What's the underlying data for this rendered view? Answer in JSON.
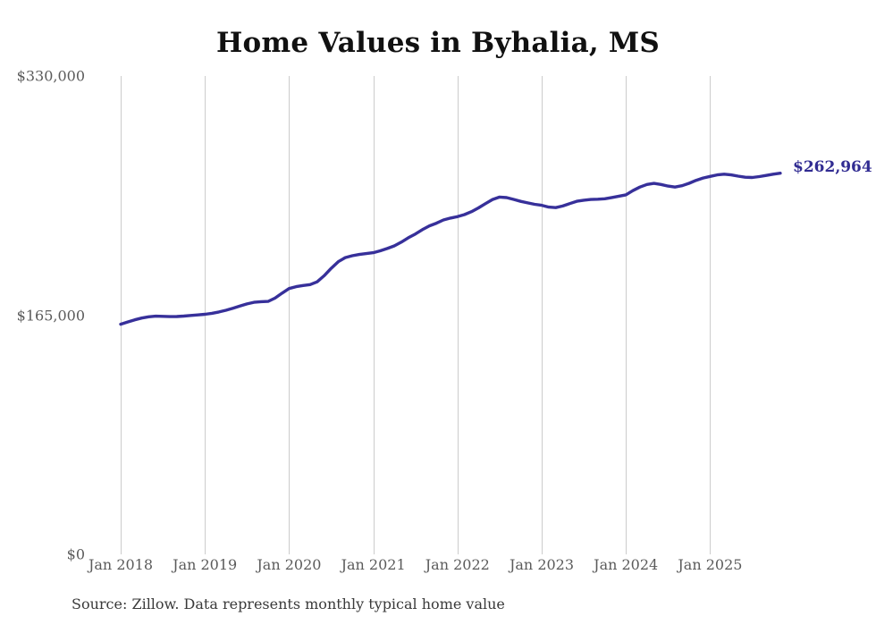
{
  "chart_data": {
    "type": "line",
    "title": "Home Values in Byhalia, MS",
    "source": "Source: Zillow. Data represents monthly typical home value",
    "end_label": "$262,964",
    "latest_value": 262964,
    "xlabel": "",
    "ylabel": "",
    "ylim": [
      0,
      330000
    ],
    "grid": "vertical-only",
    "legend": "none",
    "line_color": "#37309a",
    "end_label_color": "#312c92",
    "grid_color": "#cccccc",
    "axis_text_color": "#5b5b5b",
    "x_start": "Jan 2018",
    "x_end": "Nov 2025",
    "points_frequency": "monthly",
    "x_tick_labels": [
      "Jan 2018",
      "Jan 2019",
      "Jan 2020",
      "Jan 2021",
      "Jan 2022",
      "Jan 2023",
      "Jan 2024",
      "Jan 2025"
    ],
    "y_ticks": [
      {
        "label": "$330,000",
        "value": 330000
      },
      {
        "label": "$165,000",
        "value": 165000
      },
      {
        "label": "$0",
        "value": 0
      }
    ],
    "series": [
      {
        "name": "Typical home value",
        "values": [
          158800,
          160300,
          161800,
          163000,
          163900,
          164300,
          164200,
          164000,
          164100,
          164400,
          164800,
          165200,
          165600,
          166300,
          167200,
          168400,
          169800,
          171300,
          172800,
          173900,
          174300,
          174500,
          176800,
          180200,
          183400,
          184700,
          185500,
          186100,
          188000,
          192200,
          197300,
          201900,
          204700,
          206000,
          206900,
          207500,
          208100,
          209400,
          211000,
          212800,
          215400,
          218400,
          221000,
          224000,
          226600,
          228500,
          230700,
          232000,
          233000,
          234400,
          236400,
          239000,
          242000,
          244800,
          246500,
          246100,
          244900,
          243500,
          242500,
          241500,
          240800,
          239600,
          239200,
          240300,
          242000,
          243600,
          244300,
          244800,
          245000,
          245300,
          246200,
          247100,
          248000,
          250900,
          253400,
          255200,
          255900,
          255200,
          254100,
          253400,
          254300,
          256000,
          258000,
          259600,
          260700,
          261800,
          262300,
          261800,
          260900,
          260200,
          260000,
          260600,
          261400,
          262300,
          262964
        ]
      }
    ]
  }
}
